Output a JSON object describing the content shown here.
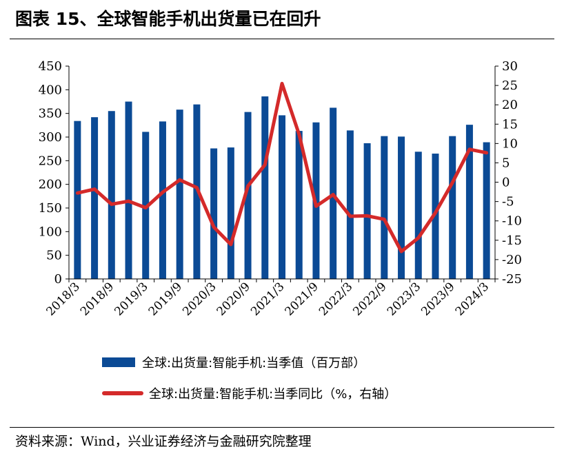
{
  "header": {
    "title": "图表 15、全球智能手机出货量已在回升"
  },
  "footer": {
    "source": "资料来源：Wind，兴业证券经济与金融研究院整理"
  },
  "colors": {
    "bar": "#0b4a95",
    "line": "#d42a2a"
  },
  "chart_data": {
    "type": "bar",
    "categories": [
      "2018/3",
      "2018/6",
      "2018/9",
      "2018/12",
      "2019/3",
      "2019/6",
      "2019/9",
      "2019/12",
      "2020/3",
      "2020/6",
      "2020/9",
      "2020/12",
      "2021/3",
      "2021/6",
      "2021/9",
      "2021/12",
      "2022/3",
      "2022/6",
      "2022/9",
      "2022/12",
      "2023/3",
      "2023/6",
      "2023/9",
      "2023/12",
      "2024/3"
    ],
    "x_tick_labels": [
      "2018/3",
      "2018/9",
      "2019/3",
      "2019/9",
      "2020/3",
      "2020/9",
      "2021/3",
      "2021/9",
      "2022/3",
      "2022/9",
      "2023/3",
      "2023/9",
      "2024/3"
    ],
    "series": [
      {
        "name": "全球:出货量:智能手机:当季值（百万部）",
        "type": "bar",
        "axis": "left",
        "values": [
          334,
          342,
          355,
          375,
          311,
          333,
          358,
          369,
          276,
          278,
          353,
          386,
          346,
          313,
          331,
          362,
          314,
          287,
          302,
          301,
          269,
          265,
          302,
          326,
          289
        ]
      },
      {
        "name": "全球:出货量:智能手机:当季同比（%，右轴）",
        "type": "line",
        "axis": "right",
        "values": [
          -2.8,
          -1.8,
          -5.7,
          -4.9,
          -6.6,
          -2.6,
          0.6,
          -1.4,
          -11.6,
          -16.1,
          -1.0,
          4.5,
          25.5,
          12.4,
          -6.2,
          -3.2,
          -8.8,
          -8.7,
          -9.6,
          -17.9,
          -14.4,
          -7.9,
          -0.1,
          8.5,
          7.6
        ]
      }
    ],
    "left_axis": {
      "ylim": [
        0,
        450
      ],
      "ticks": [
        0,
        50,
        100,
        150,
        200,
        250,
        300,
        350,
        400,
        450
      ]
    },
    "right_axis": {
      "ylim": [
        -25,
        30
      ],
      "ticks": [
        -25,
        -20,
        -15,
        -10,
        -5,
        0,
        5,
        10,
        15,
        20,
        25,
        30
      ]
    },
    "legend_position": "bottom"
  }
}
